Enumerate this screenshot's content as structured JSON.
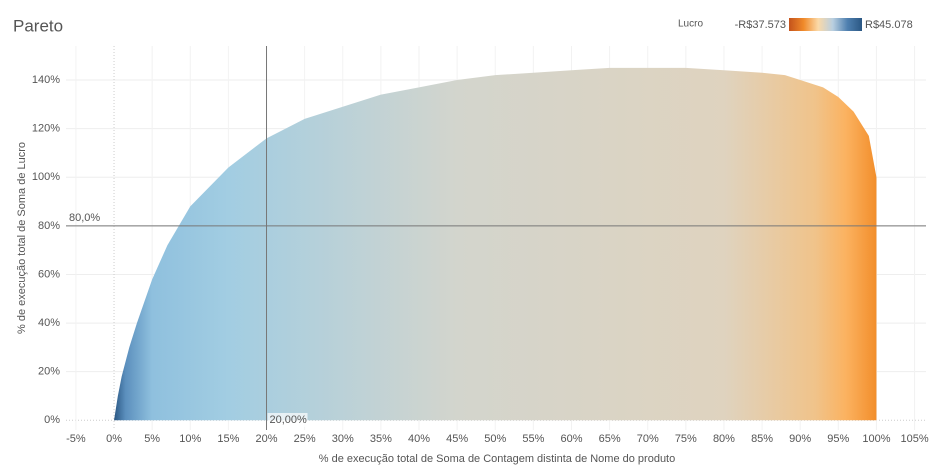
{
  "chart_data": {
    "type": "area",
    "title": "Pareto",
    "x_label": "% de execução total de Soma de Contagem distinta de Nome do produto",
    "y_label": "% de execução total de Soma de Lucro",
    "x": [
      0,
      0.5,
      1,
      2,
      3,
      5,
      7,
      10,
      15,
      20,
      25,
      30,
      35,
      40,
      45,
      50,
      55,
      60,
      65,
      70,
      75,
      80,
      85,
      88,
      90,
      93,
      95,
      97,
      99,
      100
    ],
    "series": [
      {
        "name": "Lucro",
        "values": [
          0,
          10,
          18,
          30,
          40,
          58,
          72,
          88,
          104,
          116,
          124,
          129,
          134,
          137,
          140,
          142,
          143,
          144,
          145,
          145,
          145,
          144,
          143,
          142,
          140,
          137,
          133,
          127,
          117,
          100
        ],
        "gradient": [
          {
            "at": 0,
            "color": "#2a5783"
          },
          {
            "at": 1.5,
            "color": "#5b8fbd"
          },
          {
            "at": 5,
            "color": "#8fc0de"
          },
          {
            "at": 15,
            "color": "#a2cde2"
          },
          {
            "at": 45,
            "color": "#d3d5cd"
          },
          {
            "at": 80,
            "color": "#dfd3bf"
          },
          {
            "at": 92,
            "color": "#f0c38a"
          },
          {
            "at": 96,
            "color": "#fbb260"
          },
          {
            "at": 100,
            "color": "#f28e2b"
          }
        ]
      }
    ],
    "xlim": [
      -6.3,
      106.5
    ],
    "ylim": [
      -4,
      154
    ],
    "xticks": [
      {
        "value": -5,
        "label": "-5%"
      },
      {
        "value": 0,
        "label": "0%"
      },
      {
        "value": 5,
        "label": "5%"
      },
      {
        "value": 10,
        "label": "10%"
      },
      {
        "value": 15,
        "label": "15%"
      },
      {
        "value": 20,
        "label": "20%"
      },
      {
        "value": 25,
        "label": "25%"
      },
      {
        "value": 30,
        "label": "30%"
      },
      {
        "value": 35,
        "label": "35%"
      },
      {
        "value": 40,
        "label": "40%"
      },
      {
        "value": 45,
        "label": "45%"
      },
      {
        "value": 50,
        "label": "50%"
      },
      {
        "value": 55,
        "label": "55%"
      },
      {
        "value": 60,
        "label": "60%"
      },
      {
        "value": 65,
        "label": "65%"
      },
      {
        "value": 70,
        "label": "70%"
      },
      {
        "value": 75,
        "label": "75%"
      },
      {
        "value": 80,
        "label": "80%"
      },
      {
        "value": 85,
        "label": "85%"
      },
      {
        "value": 90,
        "label": "90%"
      },
      {
        "value": 95,
        "label": "95%"
      },
      {
        "value": 100,
        "label": "100%"
      },
      {
        "value": 105,
        "label": "105%"
      }
    ],
    "yticks": [
      {
        "value": 0,
        "label": "0%"
      },
      {
        "value": 20,
        "label": "20%"
      },
      {
        "value": 40,
        "label": "40%"
      },
      {
        "value": 60,
        "label": "60%"
      },
      {
        "value": 80,
        "label": "80%"
      },
      {
        "value": 100,
        "label": "100%"
      },
      {
        "value": 120,
        "label": "120%"
      },
      {
        "value": 140,
        "label": "140%"
      }
    ],
    "grid": true,
    "reference_lines": [
      {
        "axis": "y",
        "value": 80,
        "label": "80,0%"
      },
      {
        "axis": "x",
        "value": 20,
        "label": "20,00%"
      }
    ],
    "legend": {
      "title": "Lucro",
      "min_label": "-R$37.573",
      "max_label": "R$45.078",
      "colors": [
        "#c4521b",
        "#f08a2a",
        "#fbd9a8",
        "#b9cfe0",
        "#4f80b0",
        "#2a5783"
      ]
    }
  }
}
